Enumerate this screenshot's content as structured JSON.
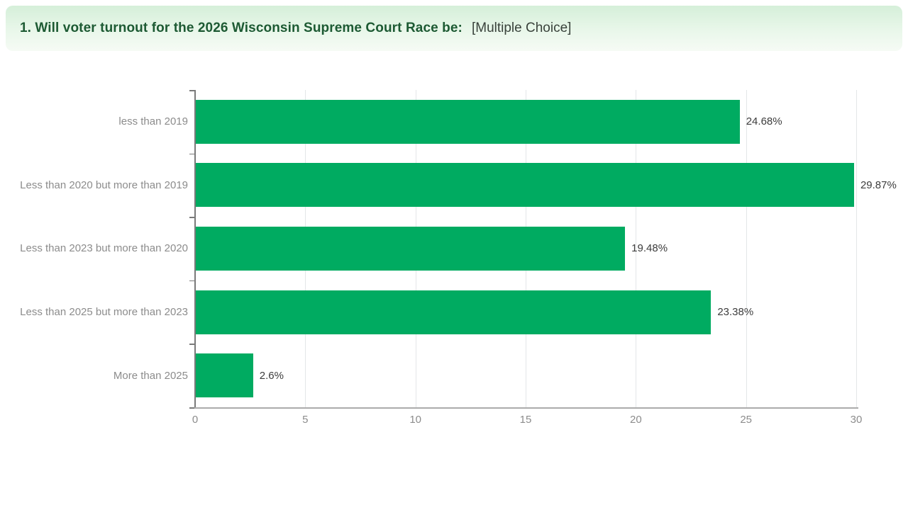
{
  "header": {
    "title": "1. Will voter turnout for the 2026 Wisconsin Supreme Court Race be:",
    "type_label": "[Multiple Choice]"
  },
  "colors": {
    "bar": "#00ab61",
    "header_background_top": "#d5efd9",
    "header_background_bottom": "#f6fbf5",
    "header_title_text": "#1d5a33",
    "category_label_text": "#8c8c8c",
    "value_label_text": "#3c3c3c",
    "gridline": "#e4e6e8",
    "axis": "#7a7a7a"
  },
  "chart_data": {
    "type": "bar",
    "orientation": "horizontal",
    "title": "",
    "xlabel": "",
    "ylabel": "",
    "categories": [
      "less than 2019",
      "Less than 2020 but more than 2019",
      "Less than 2023 but more than 2020",
      "Less than 2025 but more than 2023",
      "More than 2025"
    ],
    "values": [
      24.68,
      29.87,
      19.48,
      23.38,
      2.6
    ],
    "value_labels": [
      "24.68%",
      "29.87%",
      "19.48%",
      "23.38%",
      "2.6%"
    ],
    "x_ticks": [
      0,
      5,
      10,
      15,
      20,
      25,
      30
    ],
    "xlim": [
      0,
      30
    ],
    "grid": true,
    "legend": "none"
  }
}
